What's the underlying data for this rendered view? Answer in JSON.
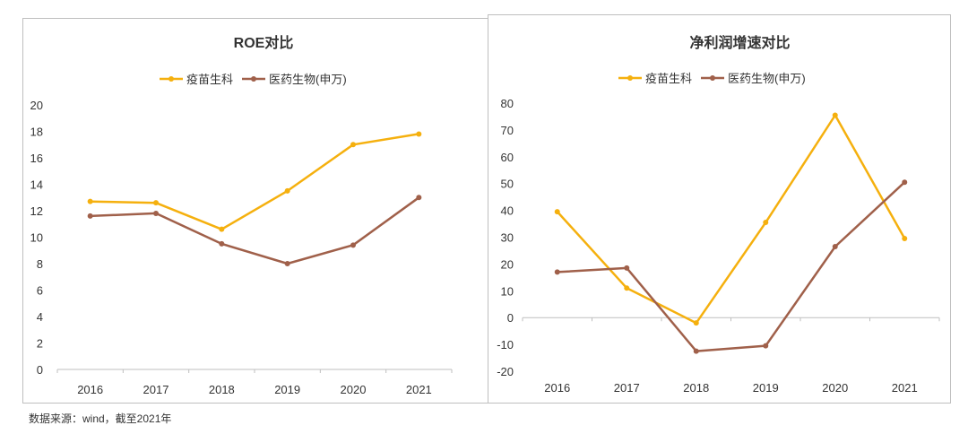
{
  "footer_source": "数据来源：wind，截至2021年",
  "colors": {
    "vaccine": "#F5B00E",
    "pharma": "#A0604A",
    "axis": "#bfbfbf",
    "text": "#333333"
  },
  "chart_data": [
    {
      "type": "line",
      "title": "ROE对比",
      "categories": [
        "2016",
        "2017",
        "2018",
        "2019",
        "2020",
        "2021"
      ],
      "ylim": [
        0,
        20
      ],
      "yticks": [
        0,
        2,
        4,
        6,
        8,
        10,
        12,
        14,
        16,
        18,
        20
      ],
      "grid": false,
      "legend_position": "top",
      "series": [
        {
          "name": "疫苗生科",
          "color": "#F5B00E",
          "values": [
            12.7,
            12.6,
            10.6,
            13.5,
            17.0,
            17.8
          ]
        },
        {
          "name": "医药生物(申万)",
          "color": "#A0604A",
          "values": [
            11.6,
            11.8,
            9.5,
            8.0,
            9.4,
            13.0
          ]
        }
      ]
    },
    {
      "type": "line",
      "title": "净利润增速对比",
      "categories": [
        "2016",
        "2017",
        "2018",
        "2019",
        "2020",
        "2021"
      ],
      "ylim": [
        -20,
        80
      ],
      "yticks": [
        -20,
        -10,
        0,
        10,
        20,
        30,
        40,
        50,
        60,
        70,
        80
      ],
      "grid": false,
      "legend_position": "top",
      "series": [
        {
          "name": "疫苗生科",
          "color": "#F5B00E",
          "values": [
            39.5,
            11,
            -2,
            35.5,
            75.5,
            29.5
          ]
        },
        {
          "name": "医药生物(申万)",
          "color": "#A0604A",
          "values": [
            17,
            18.5,
            -12.5,
            -10.5,
            26.5,
            50.5
          ]
        }
      ]
    }
  ]
}
